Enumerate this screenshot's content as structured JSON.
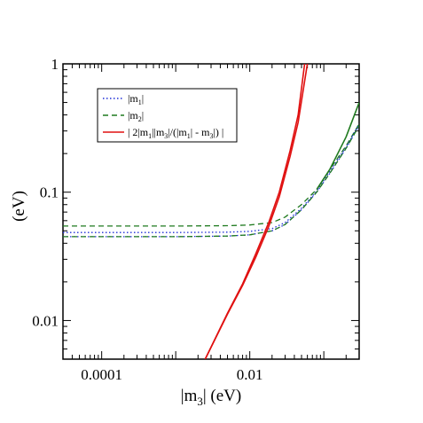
{
  "chart_data": {
    "type": "line",
    "xlabel_main": "|m",
    "xlabel_sub": "3",
    "xlabel_rest": "| (eV)",
    "ylabel": "(eV)",
    "x_scale": "log",
    "y_scale": "log",
    "xlim": [
      3e-05,
      0.3
    ],
    "ylim": [
      0.005,
      1
    ],
    "x_ticks": [
      {
        "value": 0.0001,
        "label": "0.0001"
      },
      {
        "value": 0.01,
        "label": "0.01"
      }
    ],
    "y_ticks": [
      {
        "value": 0.01,
        "label": "0.01"
      },
      {
        "value": 0.1,
        "label": "0.1"
      },
      {
        "value": 1,
        "label": "1"
      }
    ],
    "legend_position": "top-left",
    "legend": [
      {
        "base": "|m",
        "sub": "1",
        "tail": "|",
        "color": "#1f2fd6",
        "dash": "1.5,2.5"
      },
      {
        "base": "|m",
        "sub": "2",
        "tail": "|",
        "color": "#1f7a1f",
        "dash": "6,4"
      },
      {
        "base": "| 2|m",
        "sub": "1",
        "mid": "||m",
        "sub2": "3",
        "tail": "|/(|m",
        "sub3": "1",
        "tail2": "| - m",
        "sub4": "3",
        "tail3": "|) |",
        "color": "#e01010",
        "dash": ""
      }
    ],
    "series": [
      {
        "color": "#1f2fd6",
        "dash": "1.5,2.5",
        "x": [
          3e-05,
          0.0001,
          0.001,
          0.005,
          0.01,
          0.02,
          0.03,
          0.05,
          0.08,
          0.12,
          0.2,
          0.3
        ],
        "y": [
          0.045,
          0.045,
          0.045,
          0.0455,
          0.0465,
          0.05,
          0.056,
          0.073,
          0.1,
          0.14,
          0.22,
          0.33
        ]
      },
      {
        "color": "#1f7a1f",
        "dash": "6,4",
        "x": [
          3e-05,
          0.0001,
          0.001,
          0.005,
          0.01,
          0.02,
          0.03,
          0.05,
          0.08,
          0.12,
          0.2,
          0.3
        ],
        "y": [
          0.0545,
          0.0545,
          0.0545,
          0.0548,
          0.0555,
          0.058,
          0.064,
          0.08,
          0.105,
          0.15,
          0.23,
          0.34
        ]
      },
      {
        "color": "#1f2fd6",
        "dash": "1.5,2.5",
        "x": [
          3e-05,
          0.0001,
          0.001,
          0.005,
          0.01,
          0.02,
          0.03,
          0.05,
          0.08,
          0.12,
          0.2,
          0.3
        ],
        "y": [
          0.0485,
          0.0485,
          0.0485,
          0.0488,
          0.0495,
          0.052,
          0.058,
          0.075,
          0.102,
          0.145,
          0.225,
          0.34
        ]
      },
      {
        "color": "#1f7a1f",
        "dash": "6,4",
        "x": [
          3e-05,
          0.0001,
          0.001,
          0.005,
          0.01,
          0.02,
          0.03,
          0.05,
          0.08,
          0.12,
          0.2,
          0.3
        ],
        "y": [
          0.045,
          0.045,
          0.045,
          0.0455,
          0.0465,
          0.05,
          0.056,
          0.073,
          0.1,
          0.14,
          0.22,
          0.33
        ]
      },
      {
        "color": "#1f7a1f",
        "dash": "",
        "x": [
          0.08,
          0.12,
          0.2,
          0.3
        ],
        "y": [
          0.105,
          0.15,
          0.27,
          0.5
        ]
      },
      {
        "color": "#e01010",
        "dash": "",
        "x": [
          0.0025,
          0.005,
          0.008,
          0.012,
          0.018,
          0.025,
          0.035,
          0.045,
          0.055
        ],
        "y": [
          0.005,
          0.0114,
          0.0193,
          0.033,
          0.058,
          0.1,
          0.21,
          0.4,
          1.0
        ]
      },
      {
        "color": "#e01010",
        "dash": "",
        "x": [
          0.0025,
          0.005,
          0.008,
          0.012,
          0.018,
          0.025,
          0.035,
          0.045,
          0.06
        ],
        "y": [
          0.005,
          0.0112,
          0.0188,
          0.031,
          0.054,
          0.092,
          0.19,
          0.35,
          1.0
        ]
      }
    ]
  }
}
